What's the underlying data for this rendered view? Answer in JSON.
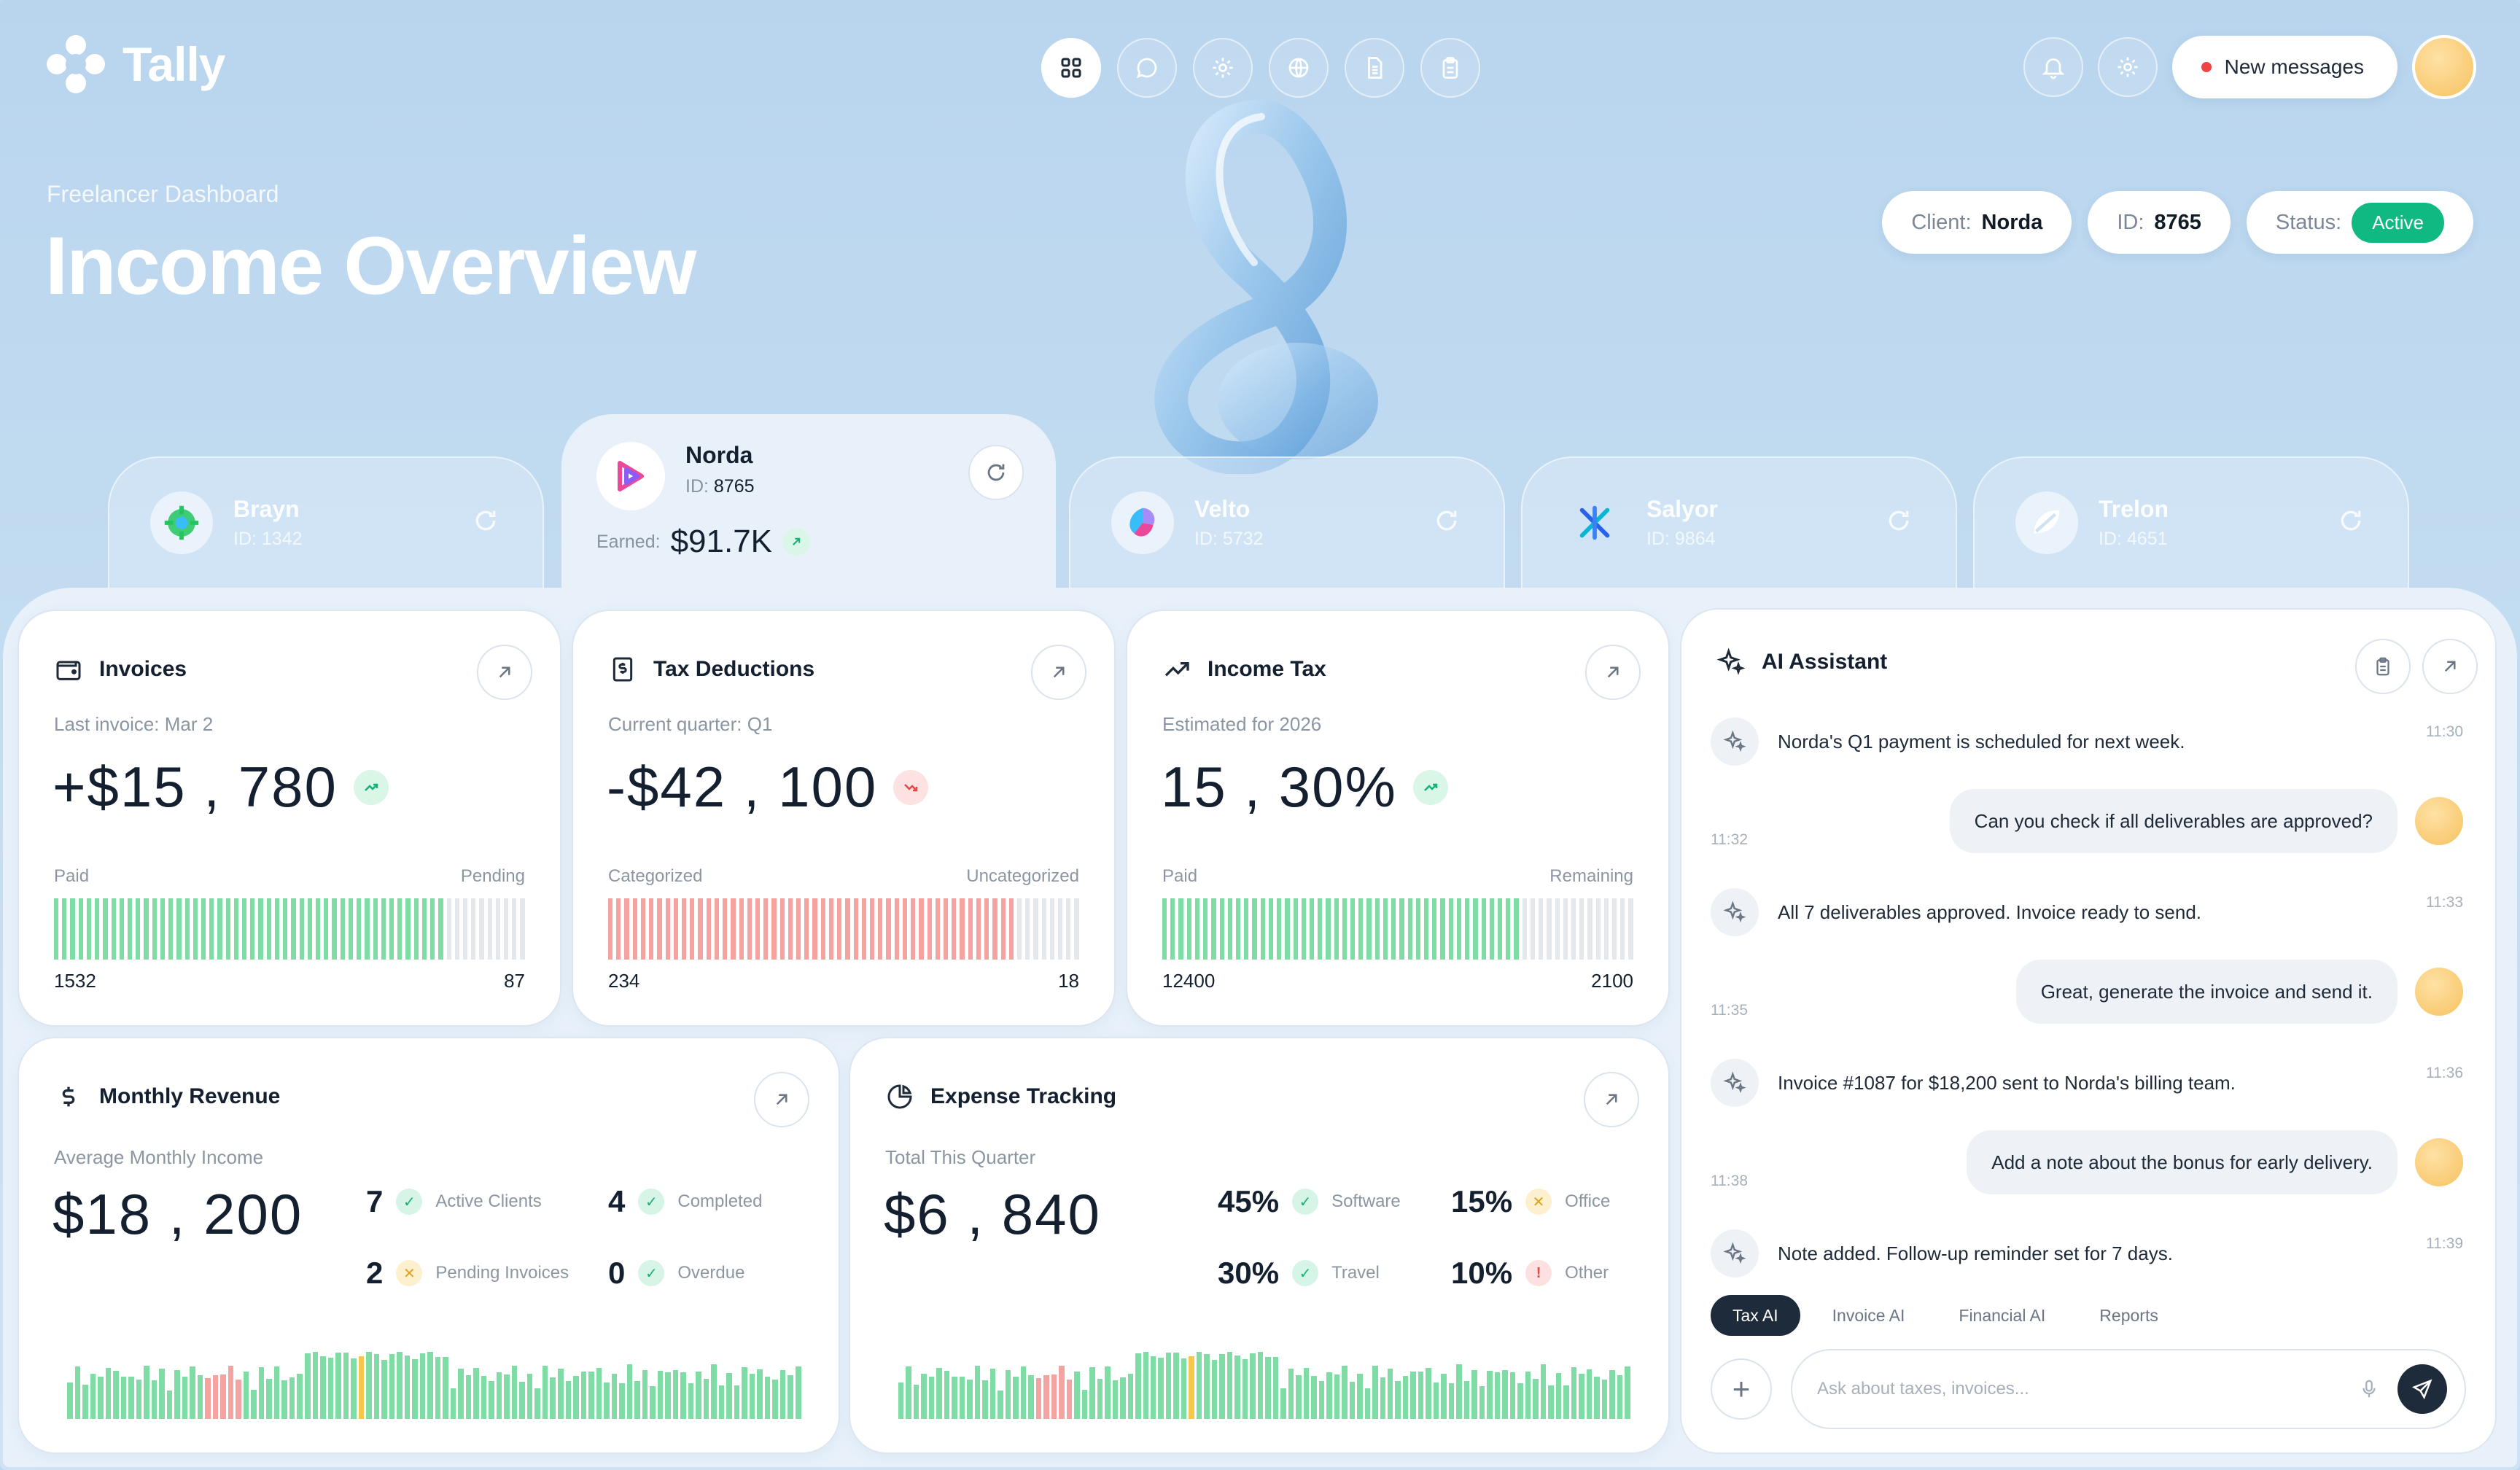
{
  "app": {
    "name": "Tally"
  },
  "header": {
    "nav_icons": [
      "grid-icon",
      "chat-icon",
      "gear-icon",
      "globe-icon",
      "document-icon",
      "clipboard-icon"
    ],
    "new_messages_label": "New messages"
  },
  "hero": {
    "subtitle": "Freelancer Dashboard",
    "title": "Income Overview",
    "client_label": "Client:",
    "client_value": "Norda",
    "id_label": "ID:",
    "id_value": "8765",
    "status_label": "Status:",
    "status_value": "Active",
    "status_color": "#10b981"
  },
  "clients": [
    {
      "name": "Brayn",
      "id": "ID: 1342"
    },
    {
      "name": "Norda",
      "id_label": "ID:",
      "id_value": "8765",
      "earned_label": "Earned:",
      "earned_value": "$91.7K",
      "active": true
    },
    {
      "name": "Velto",
      "id": "ID: 5732"
    },
    {
      "name": "Salyor",
      "id": "ID: 9864"
    },
    {
      "name": "Trelon",
      "id": "ID: 4651"
    }
  ],
  "cards": {
    "invoices": {
      "title": "Invoices",
      "label": "Last invoice: Mar 2",
      "value": "+$15 , 780",
      "left_label": "Paid",
      "right_label": "Pending",
      "left_value": "1532",
      "right_value": "87",
      "filled_fraction": 0.82,
      "bar_color": "#7fdca4"
    },
    "tax_deductions": {
      "title": "Tax Deductions",
      "label": "Current quarter: Q1",
      "value": "-$42 , 100",
      "left_label": "Categorized",
      "right_label": "Uncategorized",
      "left_value": "234",
      "right_value": "18",
      "filled_fraction": 0.87,
      "bar_color": "#f4a3a0"
    },
    "income_tax": {
      "title": "Income Tax",
      "label": "Estimated for 2026",
      "value": "15 , 30%",
      "left_label": "Paid",
      "right_label": "Remaining",
      "left_value": "12400",
      "right_value": "2100",
      "filled_fraction": 0.76,
      "bar_color": "#7fdca4"
    },
    "monthly_revenue": {
      "title": "Monthly Revenue",
      "label": "Average Monthly Income",
      "value": "$18 , 200",
      "stats": [
        {
          "n": "7",
          "label": "Active Clients",
          "status": "g"
        },
        {
          "n": "4",
          "label": "Completed",
          "status": "g"
        },
        {
          "n": "2",
          "label": "Pending Invoices",
          "status": "y"
        },
        {
          "n": "0",
          "label": "Overdue",
          "status": "g"
        }
      ]
    },
    "expense_tracking": {
      "title": "Expense Tracking",
      "label": "Total This Quarter",
      "value": "$6 , 840",
      "stats": [
        {
          "n": "45%",
          "label": "Software",
          "status": "g"
        },
        {
          "n": "15%",
          "label": "Office",
          "status": "y"
        },
        {
          "n": "30%",
          "label": "Travel",
          "status": "g"
        },
        {
          "n": "10%",
          "label": "Other",
          "status": "r"
        }
      ]
    }
  },
  "ai": {
    "title": "AI Assistant",
    "messages": [
      {
        "from": "bot",
        "text": "Norda's Q1 payment is scheduled for next week.",
        "time": "11:30"
      },
      {
        "from": "user",
        "text": "Can you check if all deliverables are approved?",
        "time": "11:32"
      },
      {
        "from": "bot",
        "text": "All 7 deliverables approved. Invoice ready to send.",
        "time": "11:33"
      },
      {
        "from": "user",
        "text": "Great, generate the invoice and send it.",
        "time": "11:35"
      },
      {
        "from": "bot",
        "text": "Invoice #1087 for $18,200 sent to Norda's billing team.",
        "time": "11:36"
      },
      {
        "from": "user",
        "text": "Add a note about the bonus for early delivery.",
        "time": "11:38"
      },
      {
        "from": "bot",
        "text": "Note added. Follow-up reminder set for 7 days.",
        "time": "11:39"
      }
    ],
    "tabs": [
      "Tax AI",
      "Invoice AI",
      "Financial AI",
      "Reports"
    ],
    "input_placeholder": "Ask about taxes, invoices..."
  }
}
